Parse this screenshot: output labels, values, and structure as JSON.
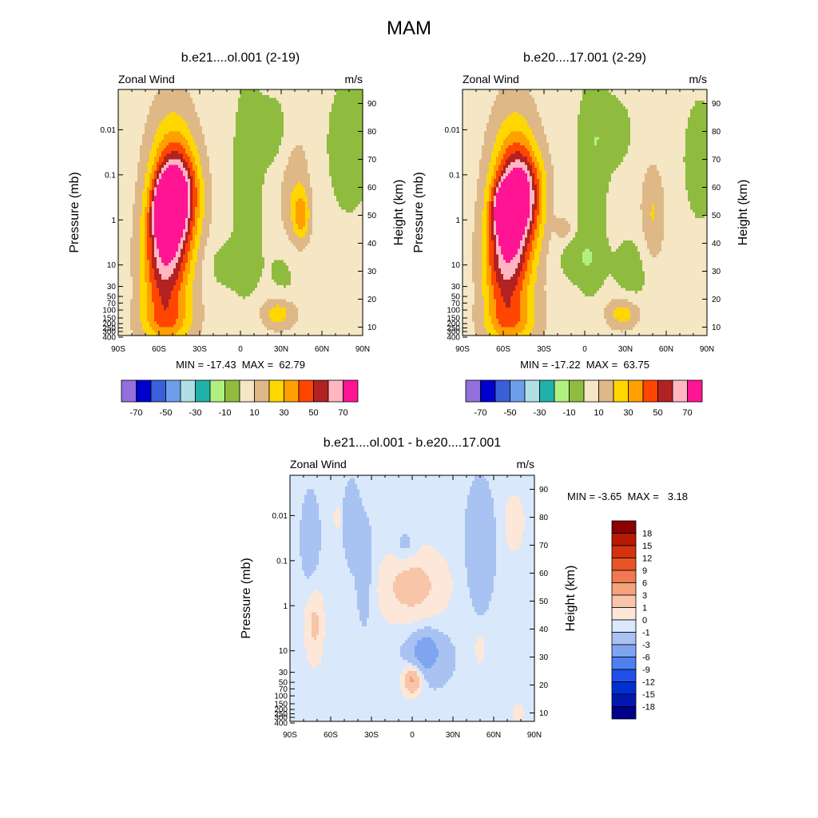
{
  "figure_title": "MAM",
  "chart_data": [
    {
      "type": "heatmap",
      "title": "b.e21....ol.001 (2-19)",
      "left_string": "Zonal Wind",
      "right_string": "m/s",
      "ylabel": "Pressure (mb)",
      "ylabel_right": "Height (km)",
      "x_ticks": [
        "90S",
        "60S",
        "30S",
        "0",
        "30N",
        "60N",
        "90N"
      ],
      "y_ticks": [
        "400",
        "300",
        "250",
        "200",
        "150",
        "100",
        "70",
        "50",
        "30",
        "10",
        "1",
        "0.1",
        "0.01"
      ],
      "y_ticks_right": [
        "10",
        "20",
        "30",
        "40",
        "50",
        "60",
        "70",
        "80",
        "90"
      ],
      "stats": "MIN = -17.43  MAX =  62.79",
      "min": -17.43,
      "max": 62.79,
      "features": [
        {
          "lat": -55,
          "z": 52,
          "value": 62,
          "sx": 6,
          "sz": 7
        },
        {
          "lat": -50,
          "z": 50,
          "value": 58,
          "sx": 12,
          "sz": 22
        },
        {
          "lat": -45,
          "z": 58,
          "value": 36,
          "sx": 10,
          "sz": 10
        },
        {
          "lat": -60,
          "z": 32,
          "value": 28,
          "sx": 10,
          "sz": 14
        },
        {
          "lat": -55,
          "z": 12,
          "value": 20,
          "sx": 14,
          "sz": 6
        },
        {
          "lat": 28,
          "z": 15,
          "value": 22,
          "sx": 9,
          "sz": 4
        },
        {
          "lat": 45,
          "z": 50,
          "value": 24,
          "sx": 4,
          "sz": 6
        },
        {
          "lat": 40,
          "z": 55,
          "value": 14,
          "sx": 8,
          "sz": 18
        },
        {
          "lat": 5,
          "z": 60,
          "value": -12,
          "sx": 8,
          "sz": 28
        },
        {
          "lat": 25,
          "z": 80,
          "value": -10,
          "sx": 10,
          "sz": 10
        },
        {
          "lat": 80,
          "z": 75,
          "value": -12,
          "sx": 12,
          "sz": 18
        },
        {
          "lat": -10,
          "z": 32,
          "value": -10,
          "sx": 12,
          "sz": 6
        },
        {
          "lat": 35,
          "z": 30,
          "value": -10,
          "sx": 10,
          "sz": 10
        },
        {
          "lat": 70,
          "z": 12,
          "value": 4,
          "sx": 15,
          "sz": 4
        }
      ]
    },
    {
      "type": "heatmap",
      "title": "b.e20....17.001 (2-29)",
      "left_string": "Zonal Wind",
      "right_string": "m/s",
      "ylabel": "Pressure (mb)",
      "ylabel_right": "Height (km)",
      "x_ticks": [
        "90S",
        "60S",
        "30S",
        "0",
        "30N",
        "60N",
        "90N"
      ],
      "y_ticks": [
        "400",
        "300",
        "250",
        "200",
        "150",
        "100",
        "70",
        "50",
        "30",
        "10",
        "1",
        "0.1",
        "0.01"
      ],
      "y_ticks_right": [
        "10",
        "20",
        "30",
        "40",
        "50",
        "60",
        "70",
        "80",
        "90"
      ],
      "stats": "MIN = -17.22  MAX =  63.75",
      "min": -17.22,
      "max": 63.75,
      "features": [
        {
          "lat": -58,
          "z": 52,
          "value": 63,
          "sx": 6,
          "sz": 6
        },
        {
          "lat": -52,
          "z": 50,
          "value": 58,
          "sx": 12,
          "sz": 22
        },
        {
          "lat": -45,
          "z": 58,
          "value": 36,
          "sx": 10,
          "sz": 10
        },
        {
          "lat": -62,
          "z": 32,
          "value": 28,
          "sx": 10,
          "sz": 14
        },
        {
          "lat": -55,
          "z": 12,
          "value": 20,
          "sx": 14,
          "sz": 6
        },
        {
          "lat": 28,
          "z": 15,
          "value": 22,
          "sx": 9,
          "sz": 4
        },
        {
          "lat": 50,
          "z": 50,
          "value": 16,
          "sx": 6,
          "sz": 12
        },
        {
          "lat": 5,
          "z": 60,
          "value": -12,
          "sx": 8,
          "sz": 28
        },
        {
          "lat": 20,
          "z": 80,
          "value": -10,
          "sx": 12,
          "sz": 10
        },
        {
          "lat": 85,
          "z": 70,
          "value": -10,
          "sx": 10,
          "sz": 18
        },
        {
          "lat": -5,
          "z": 34,
          "value": -10,
          "sx": 12,
          "sz": 6
        },
        {
          "lat": 35,
          "z": 30,
          "value": -10,
          "sx": 10,
          "sz": 10
        },
        {
          "lat": -15,
          "z": 45,
          "value": 12,
          "sx": 4,
          "sz": 3
        }
      ]
    },
    {
      "type": "heatmap",
      "title": "b.e21....ol.001 - b.e20....17.001",
      "left_string": "Zonal Wind",
      "right_string": "m/s",
      "ylabel": "Pressure (mb)",
      "ylabel_right": "Height (km)",
      "x_ticks": [
        "90S",
        "60S",
        "30S",
        "0",
        "30N",
        "60N",
        "90N"
      ],
      "y_ticks": [
        "400",
        "300",
        "250",
        "200",
        "150",
        "100",
        "70",
        "50",
        "30",
        "10",
        "1",
        "0.1",
        "0.01"
      ],
      "y_ticks_right": [
        "10",
        "20",
        "30",
        "40",
        "50",
        "60",
        "70",
        "80",
        "90"
      ],
      "stats": "MIN = -3.65  MAX =   3.18",
      "min": -3.65,
      "max": 3.18,
      "features": [
        {
          "lat": -45,
          "z": 78,
          "value": -1.8,
          "sx": 4,
          "sz": 10
        },
        {
          "lat": -75,
          "z": 72,
          "value": -1.6,
          "sx": 5,
          "sz": 12
        },
        {
          "lat": -35,
          "z": 60,
          "value": -1.4,
          "sx": 5,
          "sz": 15
        },
        {
          "lat": 50,
          "z": 70,
          "value": -2.2,
          "sx": 7,
          "sz": 15
        },
        {
          "lat": -5,
          "z": 70,
          "value": -1.3,
          "sx": 6,
          "sz": 4
        },
        {
          "lat": 10,
          "z": 32,
          "value": -3.5,
          "sx": 6,
          "sz": 4
        },
        {
          "lat": 10,
          "z": 30,
          "value": -1.8,
          "sx": 14,
          "sz": 8
        },
        {
          "lat": 0,
          "z": 55,
          "value": 2.0,
          "sx": 18,
          "sz": 10
        },
        {
          "lat": -72,
          "z": 42,
          "value": 1.8,
          "sx": 5,
          "sz": 10
        },
        {
          "lat": 0,
          "z": 22,
          "value": 3.0,
          "sx": 4,
          "sz": 3
        },
        {
          "lat": 0,
          "z": 22,
          "value": 1.6,
          "sx": 7,
          "sz": 5
        },
        {
          "lat": 75,
          "z": 78,
          "value": 1.5,
          "sx": 5,
          "sz": 7
        },
        {
          "lat": 50,
          "z": 33,
          "value": 1.3,
          "sx": 3,
          "sz": 4
        },
        {
          "lat": -55,
          "z": 80,
          "value": 1.2,
          "sx": 2,
          "sz": 3
        },
        {
          "lat": 78,
          "z": 10,
          "value": 1.5,
          "sx": 3,
          "sz": 2
        }
      ]
    }
  ],
  "colorbar_top": {
    "labels": [
      "-70",
      "-50",
      "-30",
      "-10",
      "10",
      "30",
      "50",
      "70"
    ],
    "levels": [
      -70,
      -60,
      -50,
      -40,
      -30,
      -20,
      -10,
      0,
      10,
      20,
      30,
      40,
      50,
      60,
      70
    ],
    "colors": [
      "#9370db",
      "#0000cd",
      "#3a5fd9",
      "#6d9eeb",
      "#b0e0e6",
      "#20b2aa",
      "#b0f080",
      "#8fbc3f",
      "#f5e6c4",
      "#deb887",
      "#ffd700",
      "#ff9f00",
      "#ff4500",
      "#b22222",
      "#ffb6c1",
      "#ff1493"
    ]
  },
  "colorbar_diff": {
    "labels": [
      "18",
      "15",
      "12",
      "9",
      "6",
      "3",
      "1",
      "0",
      "-1",
      "-3",
      "-6",
      "-9",
      "-12",
      "-15",
      "-18"
    ],
    "levels": [
      -18,
      -15,
      -12,
      -9,
      -6,
      -3,
      -1,
      0,
      1,
      3,
      6,
      9,
      12,
      15,
      18
    ],
    "colors": [
      "#00008b",
      "#0018b0",
      "#0030d0",
      "#1f4fe8",
      "#4f7ff0",
      "#7fa4f0",
      "#a8c2f2",
      "#d9e8fb",
      "#fde7d8",
      "#f8c5a8",
      "#f4a37d",
      "#f07a50",
      "#e85428",
      "#d4320f",
      "#b51a05",
      "#8b0000"
    ]
  }
}
